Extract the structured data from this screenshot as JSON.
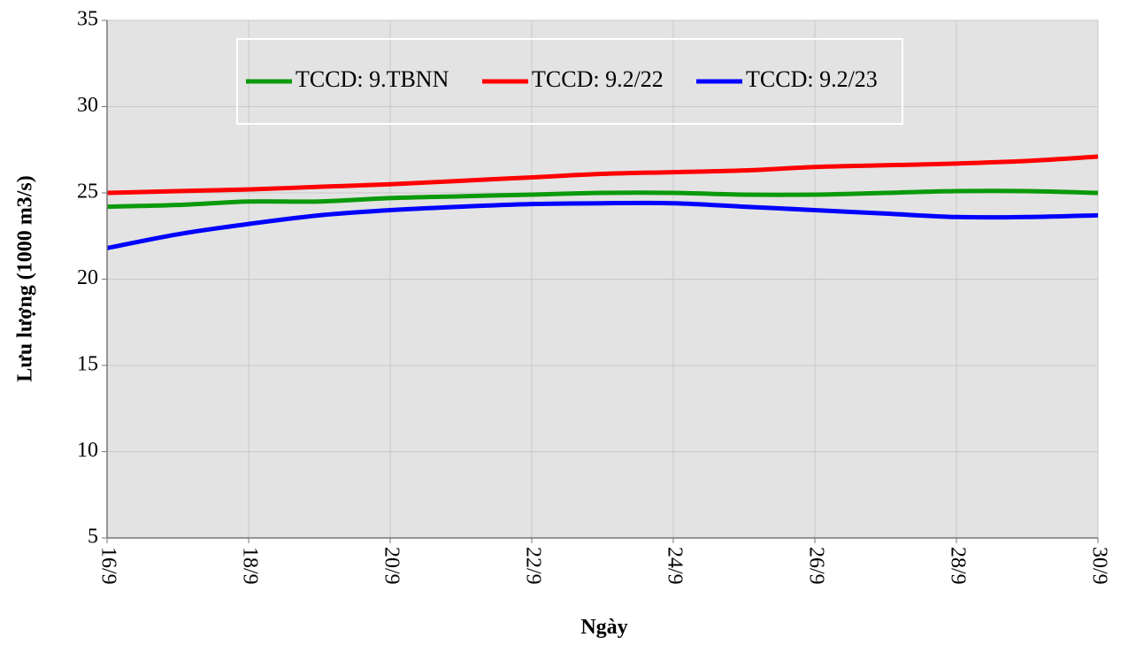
{
  "chart_data": {
    "type": "line",
    "x_label": "Ngày",
    "y_label": "Lưu lượng (1000 m3/s)",
    "categories": [
      "16/9",
      null,
      "18/9",
      null,
      "20/9",
      null,
      "22/9",
      null,
      "24/9",
      null,
      "26/9",
      null,
      "28/9",
      null,
      "30/9"
    ],
    "series": [
      {
        "name": "TCCD: 9.TBNN",
        "color": "#0a9a0a",
        "values": [
          24.2,
          24.3,
          24.5,
          24.5,
          24.7,
          24.8,
          24.9,
          25.0,
          25.0,
          24.9,
          24.9,
          25.0,
          25.1,
          25.1,
          25.0
        ]
      },
      {
        "name": "TCCD: 9.2/22",
        "color": "#ff0000",
        "values": [
          25.0,
          25.1,
          25.2,
          25.35,
          25.5,
          25.7,
          25.9,
          26.1,
          26.2,
          26.3,
          26.5,
          26.6,
          26.7,
          26.85,
          27.1
        ]
      },
      {
        "name": "TCCD: 9.2/23",
        "color": "#0000ff",
        "values": [
          21.8,
          22.6,
          23.2,
          23.7,
          24.0,
          24.2,
          24.35,
          24.4,
          24.4,
          24.2,
          24.0,
          23.8,
          23.6,
          23.6,
          23.7
        ]
      }
    ],
    "ylim": [
      5,
      35
    ],
    "yticks": [
      5,
      10,
      15,
      20,
      25,
      30,
      35
    ],
    "grid": true
  }
}
